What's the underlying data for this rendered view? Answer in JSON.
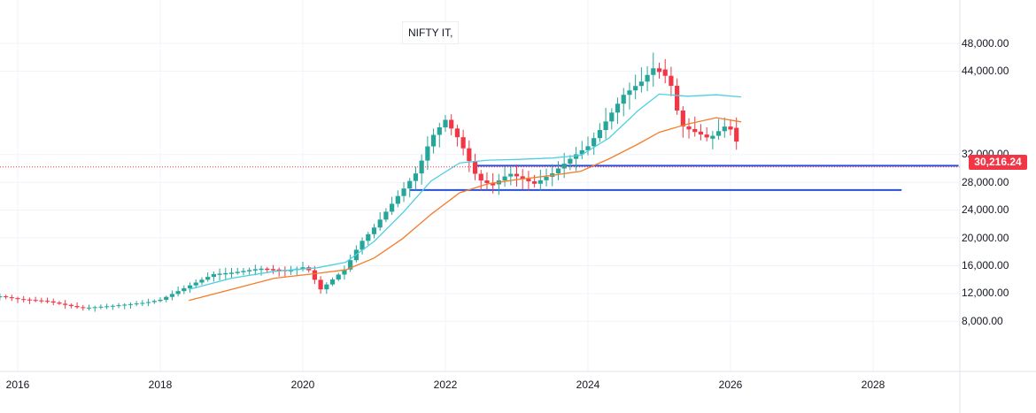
{
  "symbol": "NIFTY IT,",
  "last_price": "30,216.24",
  "colors": {
    "up": "#26a69a",
    "down": "#f23645",
    "ema_fast": "#4dd0e1",
    "ema_slow": "#f57c2b",
    "hline": "#2a4fd6",
    "last_price_line": "#f23645"
  },
  "chart_data": {
    "type": "candlestick",
    "interval": "monthly",
    "xlim": [
      2015.75,
      2029.35
    ],
    "ylim": [
      5000,
      50000
    ],
    "y_ticks": [
      "48,000.00",
      "44,000.00",
      "32,000.00",
      "28,000.00",
      "24,000.00",
      "20,000.00",
      "16,000.00",
      "12,000.00",
      "8,000.00"
    ],
    "y_tick_values": [
      48000,
      44000,
      32000,
      28000,
      24000,
      20000,
      16000,
      12000,
      8000
    ],
    "x_ticks": [
      "2016",
      "2018",
      "2020",
      "2022",
      "2024",
      "2026",
      "2028"
    ],
    "x_tick_values": [
      2016,
      2018,
      2020,
      2022,
      2024,
      2026,
      2028
    ],
    "anchors": [
      [
        2015.75,
        11600
      ],
      [
        2016.0,
        11200
      ],
      [
        2016.4,
        10900
      ],
      [
        2016.9,
        9900
      ],
      [
        2017.3,
        10200
      ],
      [
        2017.8,
        10700
      ],
      [
        2018.0,
        11100
      ],
      [
        2018.3,
        12600
      ],
      [
        2018.75,
        14800
      ],
      [
        2019.0,
        15000
      ],
      [
        2019.4,
        15600
      ],
      [
        2019.8,
        15300
      ],
      [
        2020.05,
        15900
      ],
      [
        2020.25,
        12600
      ],
      [
        2020.45,
        14300
      ],
      [
        2020.6,
        15600
      ],
      [
        2020.8,
        19200
      ],
      [
        2021.0,
        21500
      ],
      [
        2021.3,
        25600
      ],
      [
        2021.6,
        29500
      ],
      [
        2021.8,
        34400
      ],
      [
        2022.0,
        37000
      ],
      [
        2022.2,
        34000
      ],
      [
        2022.45,
        28500
      ],
      [
        2022.65,
        27600
      ],
      [
        2022.9,
        29300
      ],
      [
        2023.25,
        27800
      ],
      [
        2023.5,
        29300
      ],
      [
        2023.8,
        31800
      ],
      [
        2024.0,
        33200
      ],
      [
        2024.2,
        36000
      ],
      [
        2024.5,
        40600
      ],
      [
        2024.75,
        42500
      ],
      [
        2024.95,
        44800
      ],
      [
        2025.15,
        42600
      ],
      [
        2025.3,
        36200
      ],
      [
        2025.5,
        35300
      ],
      [
        2025.7,
        34300
      ],
      [
        2025.95,
        36300
      ],
      [
        2026.07,
        35200
      ],
      [
        2026.12,
        30216
      ]
    ],
    "ema_fast": [
      [
        2018.4,
        12600
      ],
      [
        2019.0,
        14200
      ],
      [
        2019.6,
        15200
      ],
      [
        2020.2,
        15700
      ],
      [
        2020.6,
        16500
      ],
      [
        2021.0,
        19500
      ],
      [
        2021.4,
        23600
      ],
      [
        2021.8,
        28200
      ],
      [
        2022.2,
        30800
      ],
      [
        2022.6,
        31200
      ],
      [
        2023.0,
        31300
      ],
      [
        2023.5,
        31500
      ],
      [
        2023.9,
        31900
      ],
      [
        2024.3,
        34400
      ],
      [
        2024.7,
        38300
      ],
      [
        2025.0,
        40700
      ],
      [
        2025.4,
        40400
      ],
      [
        2025.8,
        40600
      ],
      [
        2026.15,
        40300
      ]
    ],
    "ema_slow": [
      [
        2018.4,
        11000
      ],
      [
        2019.0,
        12600
      ],
      [
        2019.6,
        14200
      ],
      [
        2020.2,
        14900
      ],
      [
        2020.6,
        15400
      ],
      [
        2021.0,
        17100
      ],
      [
        2021.4,
        19900
      ],
      [
        2021.8,
        23400
      ],
      [
        2022.2,
        26500
      ],
      [
        2022.6,
        27800
      ],
      [
        2023.0,
        28400
      ],
      [
        2023.5,
        29000
      ],
      [
        2023.9,
        29600
      ],
      [
        2024.3,
        31400
      ],
      [
        2024.7,
        33500
      ],
      [
        2025.0,
        35200
      ],
      [
        2025.4,
        36400
      ],
      [
        2025.8,
        37300
      ],
      [
        2026.15,
        36700
      ]
    ],
    "hlines": [
      {
        "y": 30400,
        "x_start": 2022.4,
        "x_end": 2029.2
      },
      {
        "y": 26900,
        "x_start": 2021.5,
        "x_end": 2028.4
      }
    ],
    "last_price_value": 30216.24
  }
}
